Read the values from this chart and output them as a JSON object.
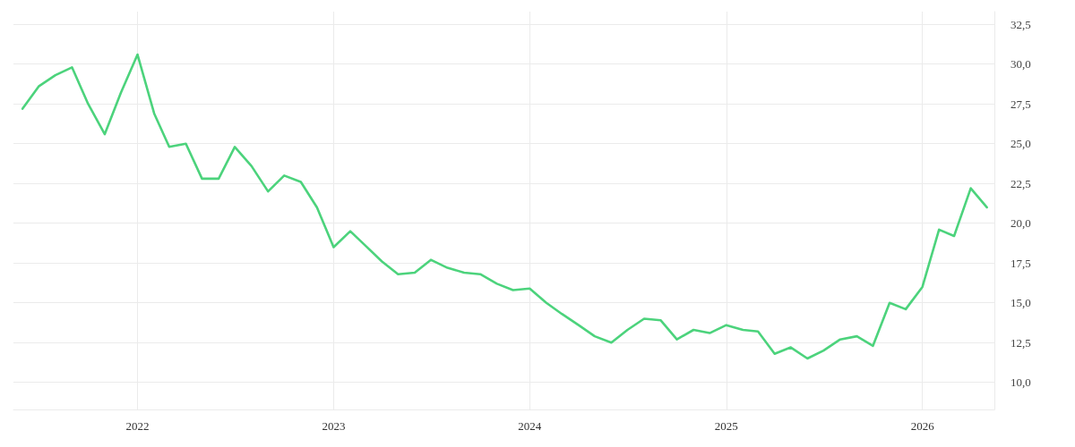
{
  "chart_data": {
    "type": "line",
    "x": [
      "2021-06",
      "2021-07",
      "2021-08",
      "2021-09",
      "2021-10",
      "2021-11",
      "2021-12",
      "2022-01",
      "2022-02",
      "2022-03",
      "2022-04",
      "2022-05",
      "2022-06",
      "2022-07",
      "2022-08",
      "2022-09",
      "2022-10",
      "2022-11",
      "2022-12",
      "2023-01",
      "2023-02",
      "2023-03",
      "2023-04",
      "2023-05",
      "2023-06",
      "2023-07",
      "2023-08",
      "2023-09",
      "2023-10",
      "2023-11",
      "2023-12",
      "2024-01",
      "2024-02",
      "2024-03",
      "2024-04",
      "2024-05",
      "2024-06",
      "2024-07",
      "2024-08",
      "2024-09",
      "2024-10",
      "2024-11",
      "2024-12",
      "2025-01",
      "2025-02",
      "2025-03",
      "2025-04",
      "2025-05",
      "2025-06",
      "2025-07",
      "2025-08",
      "2025-09",
      "2025-10",
      "2025-11",
      "2025-12",
      "2026-01",
      "2026-02",
      "2026-03",
      "2026-04",
      "2026-05"
    ],
    "values": [
      27.2,
      28.6,
      29.3,
      29.8,
      27.5,
      25.6,
      28.2,
      30.6,
      26.9,
      24.8,
      25.0,
      22.8,
      22.8,
      24.8,
      23.6,
      22.0,
      23.0,
      22.6,
      21.0,
      18.5,
      19.5,
      18.6,
      17.6,
      16.8,
      16.9,
      17.7,
      17.2,
      16.9,
      16.8,
      16.2,
      15.8,
      15.9,
      15.0,
      14.3,
      13.6,
      12.9,
      12.5,
      13.3,
      14.0,
      13.9,
      12.7,
      13.3,
      13.1,
      13.6,
      13.3,
      13.2,
      11.8,
      12.2,
      11.5,
      12.0,
      12.7,
      12.9,
      12.3,
      15.0,
      14.6,
      16.0,
      19.6,
      19.2,
      22.2,
      21.0
    ],
    "color": "#4cd37c",
    "marker": "none",
    "xlim": [
      "2021-05-15",
      "2026-05-15"
    ],
    "xticks": [
      "2022",
      "2023",
      "2024",
      "2025",
      "2026"
    ],
    "ylim": [
      8.3,
      33.3
    ],
    "yticks": [
      {
        "value": 10,
        "label": "10,0"
      },
      {
        "value": 12.5,
        "label": "12,5"
      },
      {
        "value": 15,
        "label": "15,0"
      },
      {
        "value": 17.5,
        "label": "17,5"
      },
      {
        "value": 20,
        "label": "20,0"
      },
      {
        "value": 22.5,
        "label": "22,5"
      },
      {
        "value": 25,
        "label": "25,0"
      },
      {
        "value": 27.5,
        "label": "27,5"
      },
      {
        "value": 30,
        "label": "30,0"
      },
      {
        "value": 32.5,
        "label": "32,5"
      }
    ],
    "grid": true
  }
}
